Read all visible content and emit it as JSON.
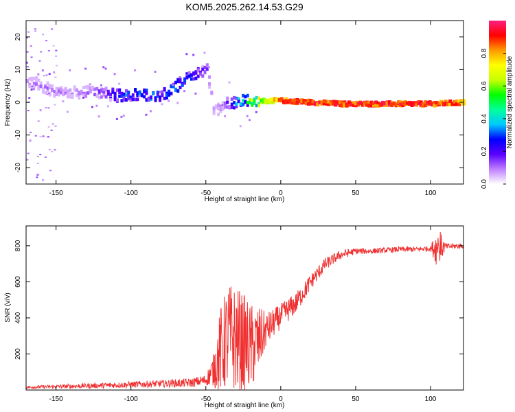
{
  "title": "KOM5.2025.262.14.53.G29",
  "chart_data": [
    {
      "type": "heatmap",
      "xlabel": "Height of straight line (km)",
      "ylabel": "Frequency (Hz)",
      "xlim": [
        -170,
        122
      ],
      "ylim": [
        -25,
        25
      ],
      "x_ticks": [
        "-150",
        "-100",
        "-50",
        "0",
        "50",
        "100"
      ],
      "y_ticks": [
        "20",
        "10",
        "0",
        "-10",
        "-20"
      ],
      "colorbar": {
        "label": "Normalized spectral amplitude",
        "range": [
          0,
          1
        ],
        "ticks": [
          "0.0",
          "0.2",
          "0.4",
          "0.6",
          "0.8"
        ],
        "colors": [
          "#ffffff",
          "#bf7fff",
          "#5a00ff",
          "#0000ff",
          "#00c8ff",
          "#00ff9a",
          "#00ff00",
          "#c8ff00",
          "#ffff00",
          "#ff9a00",
          "#ff0000",
          "#ff2080"
        ]
      },
      "ridge": {
        "x": [
          -165,
          -150,
          -140,
          -120,
          -110,
          -100,
          -90,
          -80,
          -70,
          -60,
          -50,
          -45,
          -40,
          -35,
          -30,
          -25,
          -20,
          -10,
          0,
          20,
          40,
          60,
          80,
          100,
          122
        ],
        "freq": [
          6,
          3,
          3,
          3,
          2,
          2.5,
          2,
          2,
          5,
          8,
          10,
          -3,
          -1,
          0,
          0,
          1,
          0,
          0.5,
          0.5,
          0,
          -0.5,
          -0.5,
          -0.5,
          -0.5,
          0
        ],
        "amplitude": [
          0.1,
          0.1,
          0.1,
          0.15,
          0.25,
          0.3,
          0.3,
          0.3,
          0.3,
          0.25,
          0.15,
          0.1,
          0.1,
          0.2,
          0.35,
          0.4,
          0.6,
          0.7,
          0.9,
          0.95,
          0.95,
          0.95,
          0.95,
          0.95,
          0.9
        ]
      }
    },
    {
      "type": "line",
      "xlabel": "Height of straight line (km)",
      "ylabel": "SNR (v/v)",
      "xlim": [
        -170,
        122
      ],
      "ylim": [
        0,
        910
      ],
      "x_ticks": [
        "-150",
        "-100",
        "-50",
        "0",
        "50",
        "100"
      ],
      "y_ticks": [
        "200",
        "400",
        "600",
        "800"
      ],
      "color": "#f03030",
      "envelope": {
        "x": [
          -170,
          -120,
          -80,
          -60,
          -50,
          -45,
          -40,
          -35,
          -30,
          -25,
          -20,
          -15,
          -10,
          -5,
          0,
          10,
          20,
          30,
          40,
          50,
          60,
          70,
          80,
          90,
          100,
          105,
          110,
          122
        ],
        "median": [
          15,
          25,
          35,
          40,
          55,
          110,
          220,
          300,
          280,
          260,
          230,
          270,
          330,
          370,
          410,
          480,
          600,
          700,
          750,
          770,
          770,
          775,
          780,
          780,
          785,
          790,
          795,
          800
        ],
        "spread": [
          8,
          15,
          20,
          25,
          30,
          90,
          250,
          300,
          300,
          280,
          250,
          200,
          100,
          80,
          70,
          60,
          45,
          35,
          25,
          18,
          15,
          15,
          15,
          15,
          15,
          120,
          18,
          15
        ]
      }
    }
  ]
}
